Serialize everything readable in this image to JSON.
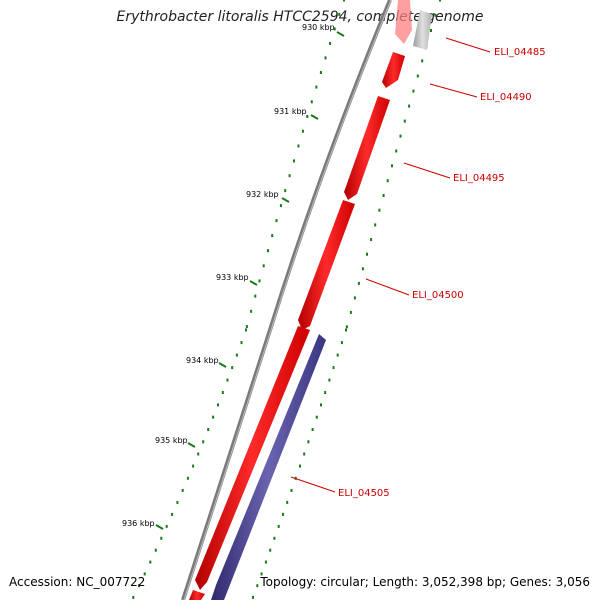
{
  "title": "Erythrobacter litoralis HTCC2594, complete genome",
  "footer": {
    "accession": "Accession: NC_007722",
    "summary": "Topology: circular; Length: 3,052,398 bp; Genes: 3,056"
  },
  "scale": {
    "unit": "kbp",
    "ticks": [
      {
        "label": "930 kbp"
      },
      {
        "label": "931 kbp"
      },
      {
        "label": "932 kbp"
      },
      {
        "label": "933 kbp"
      },
      {
        "label": "934 kbp"
      },
      {
        "label": "935 kbp"
      },
      {
        "label": "936 kbp"
      }
    ]
  },
  "genes": [
    {
      "id": "ELI_04485"
    },
    {
      "id": "ELI_04490"
    },
    {
      "id": "ELI_04495"
    },
    {
      "id": "ELI_04500"
    },
    {
      "id": "ELI_04505"
    }
  ],
  "colors": {
    "forward_cds": "#ff0000",
    "reverse_cds": "#4b4591",
    "other": "#c8c8c8",
    "backbone": "#808080",
    "gc_ticks": "#1a7a1a",
    "label": "#cc0000"
  }
}
